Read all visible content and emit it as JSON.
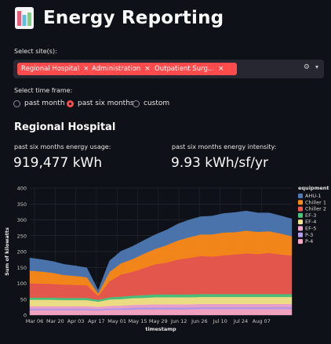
{
  "app": {
    "title": "Energy Reporting",
    "logo_icon": "bar-chart-logo-icon"
  },
  "site_select": {
    "label": "Select site(s):",
    "selected": [
      "Regional Hospital",
      "Administration",
      "Outpatient Surg..."
    ],
    "remove_icon": "×",
    "clear_icon": "⚙",
    "dropdown_icon": "▾",
    "tag_color": "#ff4b4b"
  },
  "time_frame": {
    "label": "Select time frame:",
    "options": [
      "past month",
      "past six months",
      "custom"
    ],
    "selected": "past six months"
  },
  "section": {
    "title": "Regional Hospital",
    "usage_label": "past six months energy usage:",
    "usage_value": "919,477 kWh",
    "intensity_label": "past six months energy intensity:",
    "intensity_value": "9.93 kWh/sf/yr"
  },
  "chart_data": {
    "type": "area",
    "stacked": true,
    "xlabel": "timestamp",
    "ylabel": "Sum of kilowatts",
    "ylim": [
      0,
      400
    ],
    "yticks": [
      "0",
      "50",
      "100",
      "150",
      "200",
      "250",
      "300",
      "350",
      "400"
    ],
    "xticks": [
      "Mar 06",
      "Mar 20",
      "Apr 03",
      "Apr 17",
      "May 01",
      "May 15",
      "May 29",
      "Jun 12",
      "Jun 26",
      "Jul 10",
      "Jul 24",
      "Aug 07"
    ],
    "x": [
      "Mar 06",
      "Mar 13",
      "Mar 20",
      "Mar 27",
      "Apr 03",
      "Apr 07",
      "Apr 17",
      "Apr 24",
      "May 01",
      "May 08",
      "May 15",
      "May 22",
      "May 29",
      "Jun 05",
      "Jun 12",
      "Jun 19",
      "Jun 26",
      "Jul 03",
      "Jul 10",
      "Jul 17",
      "Jul 24",
      "Jul 31",
      "Aug 07",
      "Aug 14"
    ],
    "legend_title": "equipment",
    "legend_position": "right",
    "series": [
      {
        "name": "P-4",
        "color": "#fda9c7",
        "values": [
          15,
          15,
          15,
          15,
          15,
          15,
          14,
          16,
          16,
          17,
          18,
          18,
          18,
          18,
          18,
          19,
          19,
          19,
          19,
          19,
          19,
          19,
          19,
          19
        ]
      },
      {
        "name": "P-3",
        "color": "#b89ef0",
        "values": [
          5,
          5,
          5,
          5,
          5,
          5,
          5,
          5,
          5,
          6,
          6,
          6,
          6,
          6,
          6,
          6,
          6,
          6,
          6,
          6,
          6,
          6,
          6,
          6
        ]
      },
      {
        "name": "EF-5",
        "color": "#f4a8d2",
        "values": [
          8,
          8,
          8,
          8,
          8,
          8,
          7,
          8,
          9,
          9,
          9,
          10,
          10,
          10,
          10,
          10,
          10,
          10,
          10,
          10,
          10,
          10,
          10,
          10
        ]
      },
      {
        "name": "EF-4",
        "color": "#f7e78a",
        "values": [
          20,
          20,
          20,
          19,
          19,
          19,
          16,
          20,
          20,
          21,
          21,
          22,
          22,
          22,
          22,
          22,
          22,
          22,
          22,
          22,
          22,
          22,
          22,
          22
        ]
      },
      {
        "name": "EF-3",
        "color": "#4ec57f",
        "values": [
          7,
          7,
          7,
          7,
          7,
          7,
          6,
          7,
          8,
          8,
          9,
          9,
          9,
          9,
          9,
          9,
          9,
          9,
          9,
          9,
          9,
          9,
          9,
          9
        ]
      },
      {
        "name": "Chiller 2",
        "color": "#ef5a4e",
        "values": [
          45,
          44,
          43,
          42,
          41,
          40,
          12,
          50,
          70,
          75,
          85,
          95,
          100,
          110,
          115,
          120,
          118,
          122,
          125,
          128,
          126,
          130,
          125,
          122
        ]
      },
      {
        "name": "Chiller 1",
        "color": "#ff8c1a",
        "values": [
          40,
          38,
          35,
          30,
          28,
          25,
          8,
          30,
          35,
          40,
          45,
          48,
          55,
          60,
          65,
          68,
          70,
          72,
          70,
          72,
          70,
          68,
          66,
          60
        ]
      },
      {
        "name": "AHU-1",
        "color": "#4e79b5",
        "values": [
          40,
          38,
          36,
          34,
          32,
          30,
          10,
          35,
          38,
          40,
          42,
          45,
          48,
          52,
          55,
          56,
          58,
          60,
          62,
          62,
          60,
          58,
          56,
          55
        ]
      }
    ]
  }
}
